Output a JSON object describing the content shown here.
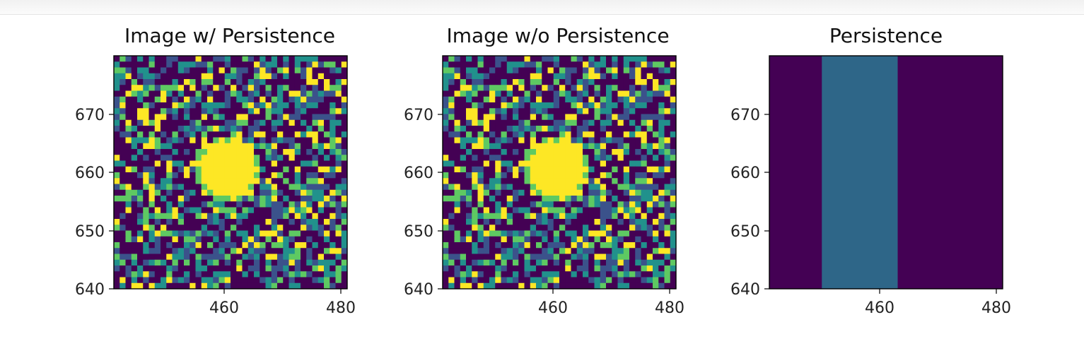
{
  "chart_data": [
    {
      "type": "heatmap",
      "title": "Image w/ Persistence",
      "xlabel": "",
      "ylabel": "",
      "xlim": [
        441.5,
        481.5
      ],
      "ylim": [
        639.5,
        679.5
      ],
      "xticks": [
        460,
        480
      ],
      "yticks": [
        640,
        650,
        660,
        670
      ],
      "colormap": "viridis",
      "grid": false,
      "rows": 40,
      "cols": 40,
      "source": {
        "x_center": 461.0,
        "y_center": 660.0,
        "radius": 4.5
      },
      "noise_seed": 17
    },
    {
      "type": "heatmap",
      "title": "Image w/o Persistence",
      "xlabel": "",
      "ylabel": "",
      "xlim": [
        441.5,
        481.5
      ],
      "ylim": [
        639.5,
        679.5
      ],
      "xticks": [
        460,
        480
      ],
      "yticks": [
        640,
        650,
        660,
        670
      ],
      "colormap": "viridis",
      "grid": false,
      "rows": 40,
      "cols": 40,
      "source": {
        "x_center": 461.0,
        "y_center": 660.0,
        "radius": 4.5
      },
      "noise_seed": 17
    },
    {
      "type": "heatmap",
      "title": "Persistence",
      "xlabel": "",
      "ylabel": "",
      "xlim": [
        441.5,
        481.5
      ],
      "ylim": [
        639.5,
        679.5
      ],
      "xticks": [
        460,
        480
      ],
      "yticks": [
        640,
        650,
        660,
        670
      ],
      "colormap": "viridis",
      "grid": false,
      "regions": [
        {
          "x": [
            441.5,
            450.5
          ],
          "value": 0.0
        },
        {
          "x": [
            450.5,
            463.5
          ],
          "value": 0.35
        },
        {
          "x": [
            463.5,
            481.5
          ],
          "value": 0.0
        }
      ]
    }
  ],
  "colors": {
    "viridis": [
      "#440154",
      "#3b528b",
      "#21918c",
      "#5ec962",
      "#fde725"
    ],
    "persistence_low": "#440154",
    "persistence_band": "#2e6688"
  }
}
